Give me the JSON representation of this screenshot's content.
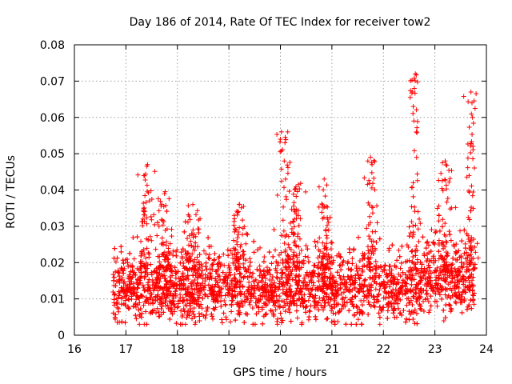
{
  "chart_data": {
    "type": "scatter",
    "title": "Day 186 of 2014, Rate Of TEC Index for receiver tow2",
    "xlabel": "GPS time / hours",
    "ylabel": "ROTI / TECUs",
    "xlim": [
      16,
      24
    ],
    "ylim": [
      0,
      0.08
    ],
    "x_ticks": [
      "16",
      "17",
      "18",
      "19",
      "20",
      "21",
      "22",
      "23",
      "24"
    ],
    "y_ticks": [
      "0",
      "0.01",
      "0.02",
      "0.03",
      "0.04",
      "0.05",
      "0.06",
      "0.07",
      "0.08"
    ],
    "grid": true,
    "marker": "+",
    "color": "#ff0000",
    "series": [
      {
        "name": "ROTI",
        "x_range": [
          16.75,
          23.78
        ],
        "typical_range": [
          0.004,
          0.025
        ],
        "approx_points": 3800,
        "notable_points": [
          {
            "x": 17.35,
            "y": 0.044
          },
          {
            "x": 17.42,
            "y": 0.047
          },
          {
            "x": 17.75,
            "y": 0.039
          },
          {
            "x": 18.3,
            "y": 0.036
          },
          {
            "x": 19.2,
            "y": 0.036
          },
          {
            "x": 20.0,
            "y": 0.054
          },
          {
            "x": 20.02,
            "y": 0.056
          },
          {
            "x": 20.1,
            "y": 0.043
          },
          {
            "x": 20.85,
            "y": 0.043
          },
          {
            "x": 21.75,
            "y": 0.049
          },
          {
            "x": 21.78,
            "y": 0.047
          },
          {
            "x": 22.58,
            "y": 0.063
          },
          {
            "x": 22.6,
            "y": 0.068
          },
          {
            "x": 22.62,
            "y": 0.072
          },
          {
            "x": 22.64,
            "y": 0.056
          },
          {
            "x": 22.58,
            "y": 0.042
          },
          {
            "x": 23.2,
            "y": 0.048
          },
          {
            "x": 23.7,
            "y": 0.067
          },
          {
            "x": 23.72,
            "y": 0.064
          },
          {
            "x": 23.73,
            "y": 0.06
          },
          {
            "x": 23.74,
            "y": 0.052
          }
        ],
        "bursts": [
          {
            "x": 17.4,
            "peak": 0.047
          },
          {
            "x": 17.75,
            "peak": 0.04
          },
          {
            "x": 18.3,
            "peak": 0.036
          },
          {
            "x": 19.2,
            "peak": 0.037
          },
          {
            "x": 20.1,
            "peak": 0.056
          },
          {
            "x": 20.3,
            "peak": 0.042
          },
          {
            "x": 20.85,
            "peak": 0.043
          },
          {
            "x": 21.75,
            "peak": 0.049
          },
          {
            "x": 22.6,
            "peak": 0.072
          },
          {
            "x": 23.2,
            "peak": 0.048
          },
          {
            "x": 23.7,
            "peak": 0.067
          }
        ]
      }
    ]
  }
}
